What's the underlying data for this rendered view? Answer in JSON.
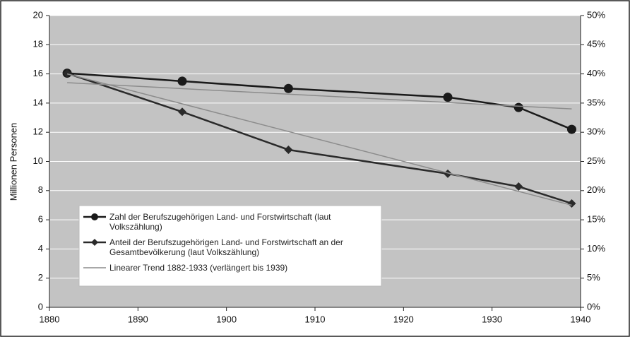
{
  "chart_data": {
    "type": "line",
    "y_label": "Millionen Personen",
    "xlim": [
      1880,
      1940
    ],
    "xticks": [
      1880,
      1890,
      1900,
      1910,
      1920,
      1930,
      1940
    ],
    "ylim": [
      0,
      20
    ],
    "yticks": [
      0,
      2,
      4,
      6,
      8,
      10,
      12,
      14,
      16,
      18,
      20
    ],
    "y2lim": [
      0,
      50
    ],
    "y2ticks": [
      {
        "value": 0,
        "label": "0%"
      },
      {
        "value": 5,
        "label": "5%"
      },
      {
        "value": 10,
        "label": "10%"
      },
      {
        "value": 15,
        "label": "15%"
      },
      {
        "value": 20,
        "label": "20%"
      },
      {
        "value": 25,
        "label": "25%"
      },
      {
        "value": 30,
        "label": "30%"
      },
      {
        "value": 35,
        "label": "35%"
      },
      {
        "value": 40,
        "label": "40%"
      },
      {
        "value": 45,
        "label": "45%"
      },
      {
        "value": 50,
        "label": "50%"
      }
    ],
    "grid": true,
    "series": [
      {
        "name": "Zahl der Berufszugehörigen Land- und Forstwirtschaft (laut Volkszählung)",
        "color": "#1a1a1a",
        "marker": "circle",
        "x": [
          1882,
          1895,
          1907,
          1925,
          1933,
          1939
        ],
        "values": [
          16.05,
          15.5,
          15.0,
          14.4,
          13.7,
          12.2
        ]
      },
      {
        "name": "Anteil der Berufszugehörigen Land- und Forstwirtschaft an der Gesamtbevölkerung (laut Volkszählung)",
        "color": "#2a2a2a",
        "marker": "diamond",
        "axis": "y2",
        "x": [
          1882,
          1895,
          1907,
          1925,
          1933,
          1939
        ],
        "values": [
          40.1,
          33.5,
          27.0,
          22.9,
          20.7,
          17.8
        ]
      },
      {
        "name": "Linearer Trend 1882-1933 (verlängert bis 1939)",
        "color": "#8c8c8c",
        "marker": "none",
        "x": [
          1882,
          1939
        ],
        "values": [
          15.4,
          13.6
        ],
        "y2_values": [
          40.0,
          17.5
        ]
      }
    ]
  }
}
